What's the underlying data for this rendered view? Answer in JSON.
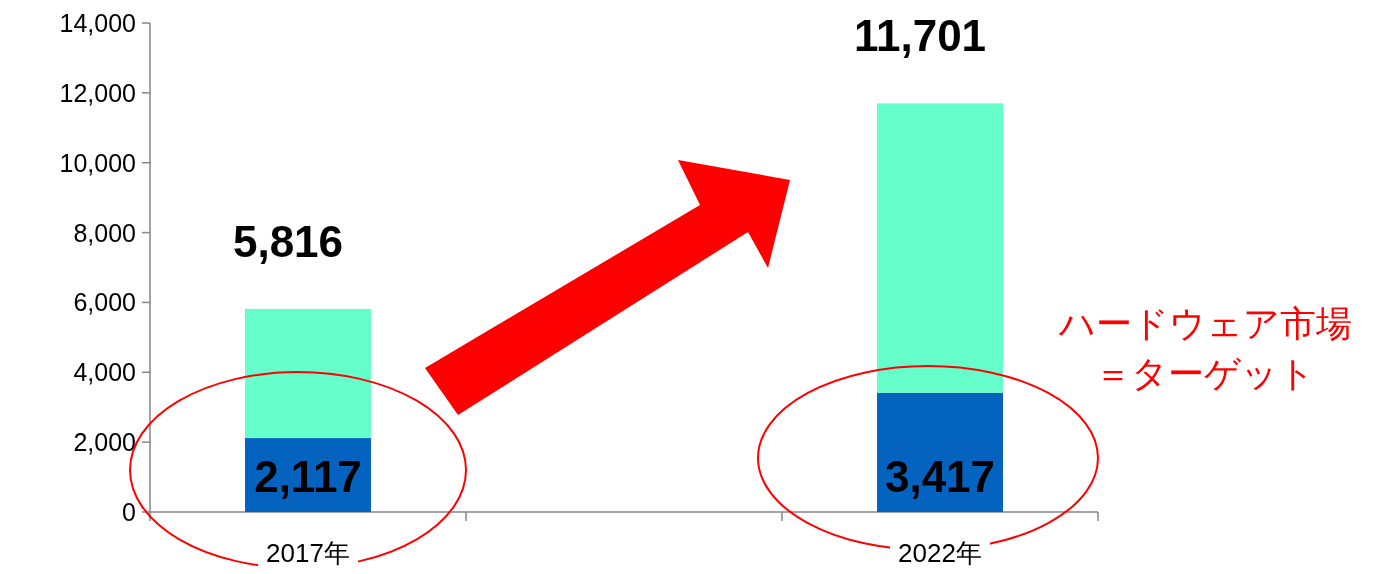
{
  "chart_data": {
    "type": "bar",
    "stacked": true,
    "categories": [
      "2017年",
      null,
      "2022年"
    ],
    "series": [
      {
        "color": "#0563c0",
        "values": [
          2117,
          null,
          3417
        ],
        "value_labels": [
          "2,117",
          null,
          "3,417"
        ]
      },
      {
        "color": "#66ffcc",
        "values": [
          3699,
          null,
          8284
        ]
      }
    ],
    "totals": [
      "5,816",
      null,
      "11,701"
    ],
    "ylim": [
      0,
      14000
    ],
    "yticks": [
      {
        "value": 0,
        "label": "0"
      },
      {
        "value": 2000,
        "label": "2,000"
      },
      {
        "value": 4000,
        "label": "4,000"
      },
      {
        "value": 6000,
        "label": "6,000"
      },
      {
        "value": 8000,
        "label": "8,000"
      },
      {
        "value": 10000,
        "label": "10,000"
      },
      {
        "value": 12000,
        "label": "12,000"
      },
      {
        "value": 14000,
        "label": "14,000"
      }
    ],
    "annotations": [
      "ハードウェア市場",
      "＝ターゲット"
    ],
    "grid": false
  }
}
